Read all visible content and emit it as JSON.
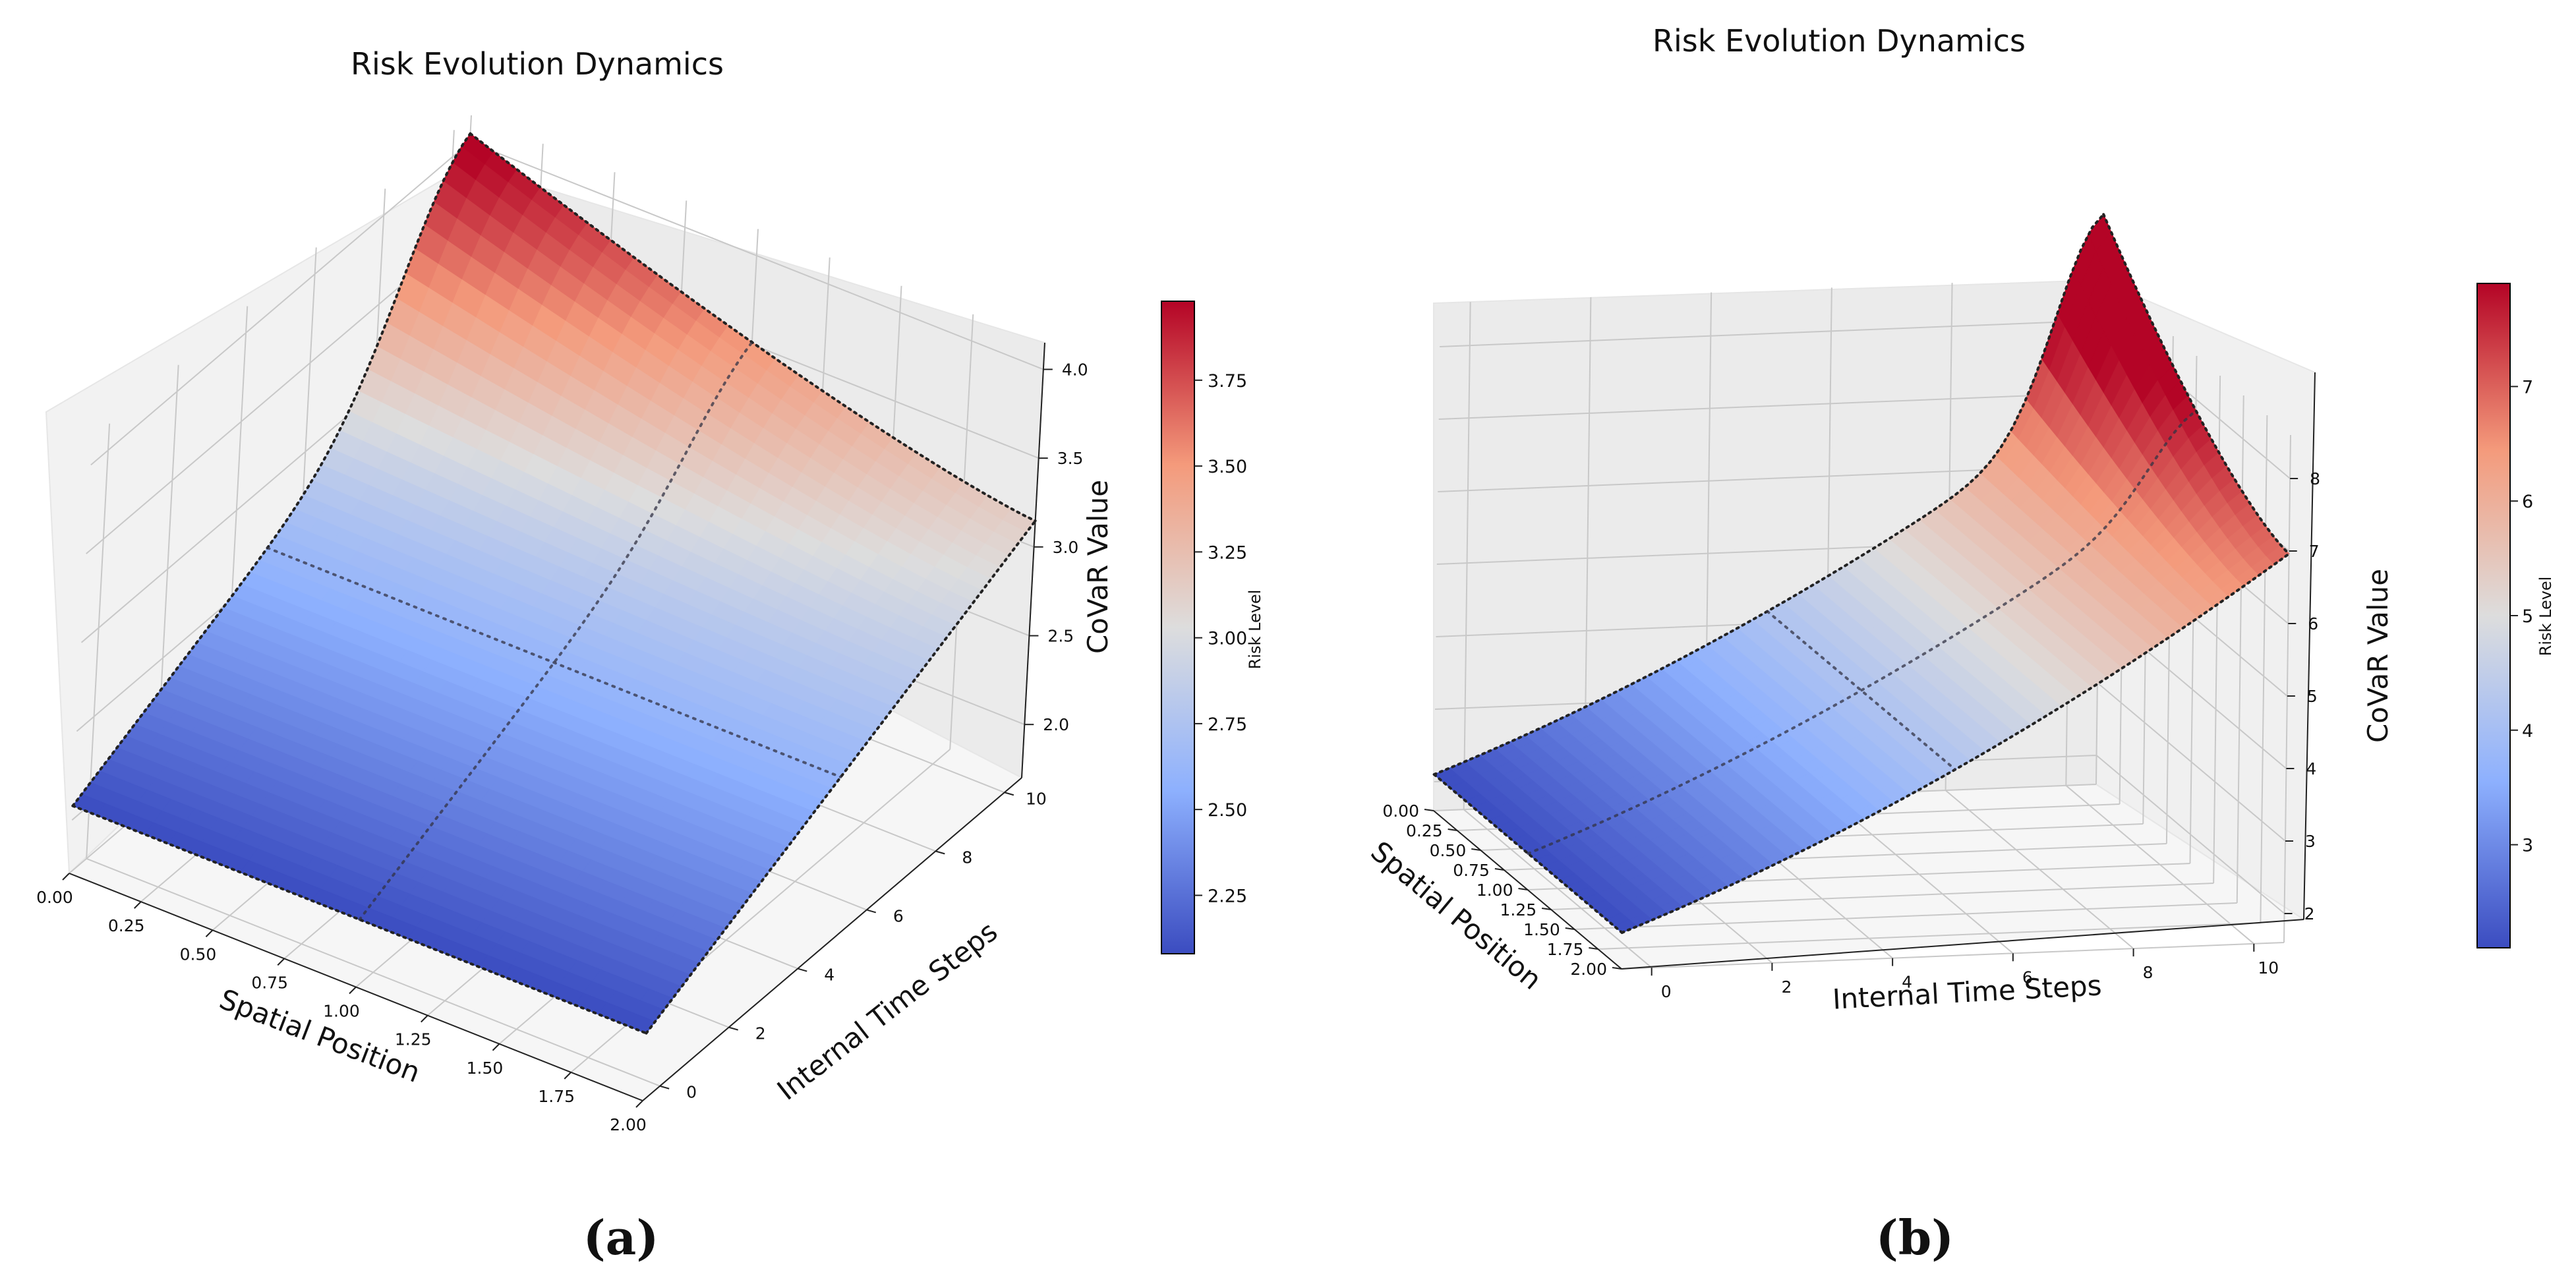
{
  "chart_data": [
    {
      "panel_label": "(a)",
      "type": "surface3d",
      "title": "Risk Evolution Dynamics",
      "xlabel": "Spatial Position",
      "ylabel": "Internal Time Steps",
      "zlabel": "CoVaR Value",
      "colorbar_label": "Risk Level",
      "colormap": "coolwarm",
      "x_ticks": [
        "0.00",
        "0.25",
        "0.50",
        "0.75",
        "1.00",
        "1.25",
        "1.50",
        "1.75",
        "2.00"
      ],
      "y_ticks": [
        "0",
        "2",
        "4",
        "6",
        "8",
        "10"
      ],
      "z_ticks": [
        "2.0",
        "2.5",
        "3.0",
        "3.5",
        "4.0"
      ],
      "colorbar_ticks": [
        "2.25",
        "2.50",
        "2.75",
        "3.00",
        "3.25",
        "3.50",
        "3.75"
      ],
      "xlim": [
        0,
        2
      ],
      "ylim": [
        0,
        11
      ],
      "zlim": [
        1.7,
        4.15
      ],
      "clim": [
        2.08,
        3.98
      ],
      "risk_summary": {
        "min": 2.08,
        "max": 3.98,
        "peak_location": "x = 0, t = 11"
      }
    },
    {
      "panel_label": "(b)",
      "type": "surface3d",
      "title": "Risk Evolution Dynamics",
      "xlabel": "Spatial Position",
      "ylabel": "Internal Time Steps",
      "zlabel": "CoVaR Value",
      "colorbar_label": "Risk Level",
      "colormap": "coolwarm",
      "x_ticks": [
        "0.00",
        "0.25",
        "0.50",
        "0.75",
        "1.00",
        "1.25",
        "1.50",
        "1.75",
        "2.00"
      ],
      "y_ticks": [
        "0",
        "2",
        "4",
        "6",
        "8",
        "10"
      ],
      "z_ticks": [
        "2",
        "3",
        "4",
        "5",
        "6",
        "7",
        "8"
      ],
      "colorbar_ticks": [
        "3",
        "4",
        "5",
        "6",
        "7"
      ],
      "xlim": [
        0,
        2
      ],
      "ylim": [
        0,
        11
      ],
      "zlim": [
        1.6,
        8.6
      ],
      "clim": [
        2.1,
        7.9
      ],
      "risk_summary": {
        "min": 2.1,
        "max": 7.9,
        "peak_location": "x = 0, t = 11"
      }
    }
  ]
}
